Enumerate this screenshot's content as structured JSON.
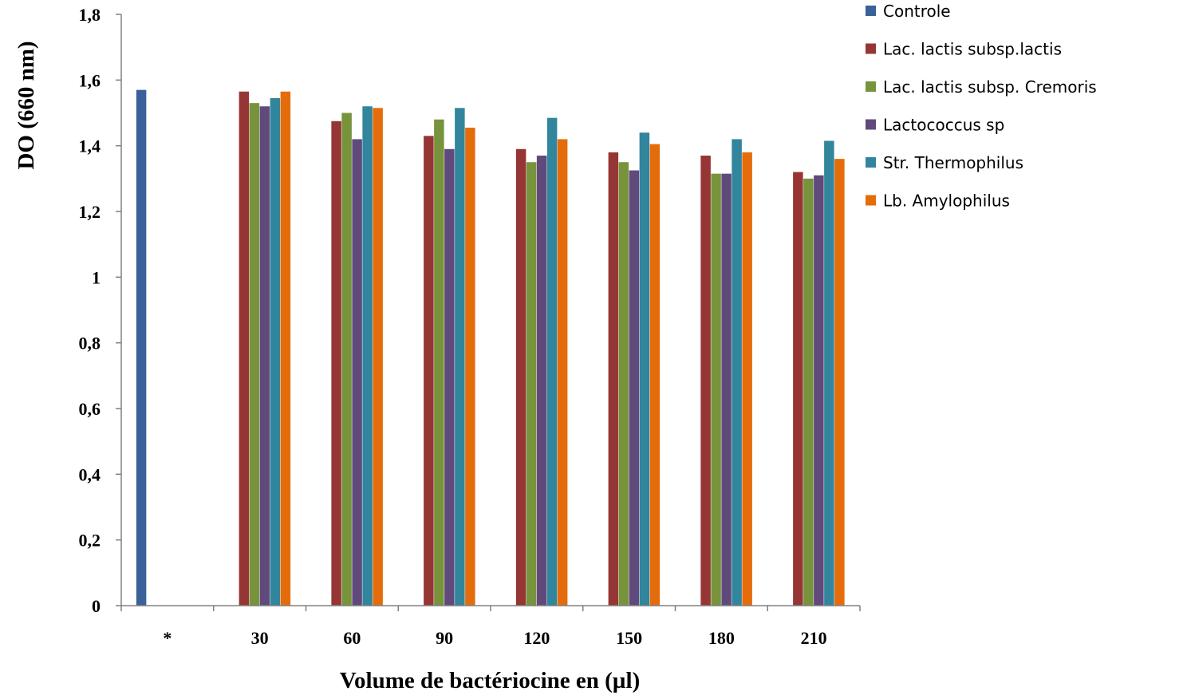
{
  "chart_data": {
    "type": "bar",
    "title": "",
    "xlabel": "Volume de bactériocine en (µl)",
    "ylabel": "DO (660 nm)",
    "ylim": [
      0,
      1.8
    ],
    "yticks": [
      "0",
      "0,2",
      "0,4",
      "0,6",
      "0,8",
      "1",
      "1,2",
      "1,4",
      "1,6",
      "1,8"
    ],
    "grid": false,
    "legend_position": "top-right",
    "categories": [
      "*",
      "30",
      "60",
      "90",
      "120",
      "150",
      "180",
      "210"
    ],
    "series": [
      {
        "name": "Controle",
        "color": "#3A6199",
        "values": [
          1.57,
          null,
          null,
          null,
          null,
          null,
          null,
          null
        ]
      },
      {
        "name": "Lac. lactis subsp.lactis",
        "color": "#963634",
        "values": [
          null,
          1.565,
          1.475,
          1.43,
          1.39,
          1.38,
          1.37,
          1.32
        ]
      },
      {
        "name": "Lac. lactis subsp. Cremoris",
        "color": "#77933C",
        "values": [
          null,
          1.53,
          1.5,
          1.48,
          1.35,
          1.35,
          1.315,
          1.3
        ]
      },
      {
        "name": "Lactococcus sp",
        "color": "#604A7B",
        "values": [
          null,
          1.52,
          1.42,
          1.39,
          1.37,
          1.325,
          1.315,
          1.31
        ]
      },
      {
        "name": "Str. Thermophilus",
        "color": "#31859C",
        "values": [
          null,
          1.545,
          1.52,
          1.515,
          1.485,
          1.44,
          1.42,
          1.415
        ]
      },
      {
        "name": "Lb. Amylophilus",
        "color": "#E46C0A",
        "values": [
          null,
          1.565,
          1.515,
          1.455,
          1.42,
          1.405,
          1.38,
          1.36
        ]
      }
    ]
  }
}
